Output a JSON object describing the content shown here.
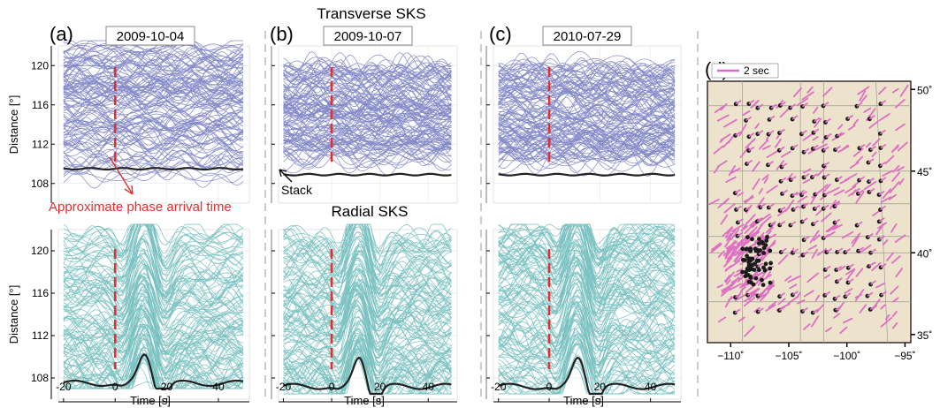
{
  "figure": {
    "section_titles": {
      "transverse": "Transverse SKS",
      "radial": "Radial SKS"
    },
    "annotations": {
      "phase": "Approximate phase arrival time",
      "stack": "Stack"
    }
  },
  "chart_data": [
    {
      "id": "a-transverse",
      "type": "line",
      "panel_letter": "(a)",
      "date": "2009-10-04",
      "component": "transverse",
      "xlabel": "",
      "ylabel": "Distance [°]",
      "xlim": [
        -22,
        52
      ],
      "ylim": [
        106,
        122
      ],
      "yticks": [
        108,
        112,
        116,
        120
      ],
      "ytick_labels": [
        "108",
        "112",
        "116",
        "120"
      ],
      "xticks": [],
      "xtick_labels": [],
      "arrival_time": 0,
      "stack_distance": 109.5,
      "stack_type": "flat",
      "trace_distance_range": [
        108.5,
        122
      ],
      "trace_time_range": [
        -20,
        50
      ],
      "trace_color": "#1e2a9c",
      "stack_color": "#222222",
      "marker_color": "#e03030"
    },
    {
      "id": "b-transverse",
      "type": "line",
      "panel_letter": "(b)",
      "date": "2009-10-07",
      "component": "transverse",
      "xlabel": "",
      "ylabel": "",
      "xlim": [
        -22,
        52
      ],
      "ylim": [
        106,
        122
      ],
      "yticks": [
        108,
        112,
        116,
        120
      ],
      "ytick_labels": [],
      "xticks": [],
      "xtick_labels": [],
      "arrival_time": 0,
      "stack_distance": 108.9,
      "stack_type": "flat",
      "trace_distance_range": [
        110,
        120
      ],
      "trace_time_range": [
        -20,
        50
      ],
      "trace_color": "#1e2a9c",
      "stack_color": "#222222",
      "marker_color": "#e03030"
    },
    {
      "id": "c-transverse",
      "type": "line",
      "panel_letter": "(c)",
      "date": "2010-07-29",
      "component": "transverse",
      "xlabel": "",
      "ylabel": "",
      "xlim": [
        -22,
        52
      ],
      "ylim": [
        106,
        122
      ],
      "yticks": [
        108,
        112,
        116,
        120
      ],
      "ytick_labels": [],
      "xticks": [],
      "xtick_labels": [],
      "arrival_time": 0,
      "stack_distance": 108.9,
      "stack_type": "flat",
      "trace_distance_range": [
        110,
        120
      ],
      "trace_time_range": [
        -20,
        50
      ],
      "trace_color": "#1e2a9c",
      "stack_color": "#222222",
      "marker_color": "#e03030"
    },
    {
      "id": "a-radial",
      "type": "line",
      "panel_letter": "",
      "date": "",
      "component": "radial",
      "xlabel": "Time [s]",
      "ylabel": "Distance [°]",
      "xlim": [
        -22,
        52
      ],
      "ylim": [
        106,
        122
      ],
      "yticks": [
        108,
        112,
        116,
        120
      ],
      "ytick_labels": [
        "108",
        "112",
        "116",
        "120"
      ],
      "xticks": [
        -20,
        0,
        20,
        40
      ],
      "xtick_labels": [
        "-20",
        "0",
        "20",
        "40"
      ],
      "arrival_time": 0,
      "stack_distance": 107.5,
      "stack_type": "pulse",
      "trace_distance_range": [
        106,
        122
      ],
      "trace_time_range": [
        -20,
        50
      ],
      "trace_color": "#0f8f8f",
      "stack_color": "#222222",
      "marker_color": "#e03030"
    },
    {
      "id": "b-radial",
      "type": "line",
      "panel_letter": "",
      "date": "",
      "component": "radial",
      "xlabel": "Time [s]",
      "ylabel": "",
      "xlim": [
        -22,
        52
      ],
      "ylim": [
        106,
        122
      ],
      "yticks": [
        108,
        112,
        116,
        120
      ],
      "ytick_labels": [],
      "xticks": [
        -20,
        0,
        20,
        40
      ],
      "xtick_labels": [
        "-20",
        "0",
        "20",
        "40"
      ],
      "arrival_time": 0,
      "stack_distance": 107.2,
      "stack_type": "pulse",
      "trace_distance_range": [
        106.5,
        122
      ],
      "trace_time_range": [
        -20,
        50
      ],
      "trace_color": "#0f8f8f",
      "stack_color": "#222222",
      "marker_color": "#e03030"
    },
    {
      "id": "c-radial",
      "type": "line",
      "panel_letter": "",
      "date": "",
      "component": "radial",
      "xlabel": "Time [s]",
      "ylabel": "",
      "xlim": [
        -22,
        52
      ],
      "ylim": [
        106,
        122
      ],
      "yticks": [
        108,
        112,
        116,
        120
      ],
      "ytick_labels": [],
      "xticks": [
        -20,
        0,
        20,
        40
      ],
      "xtick_labels": [
        "-20",
        "0",
        "20",
        "40"
      ],
      "arrival_time": 0,
      "stack_distance": 107.2,
      "stack_type": "pulse",
      "trace_distance_range": [
        106.5,
        122
      ],
      "trace_time_range": [
        -20,
        50
      ],
      "trace_color": "#0f8f8f",
      "stack_color": "#222222",
      "marker_color": "#e03030"
    },
    {
      "id": "d-map",
      "type": "scatter",
      "panel_letter": "(d)",
      "legend_label": "2 sec",
      "legend_position": "top-left",
      "xlim": [
        -112,
        -94.5
      ],
      "ylim": [
        34.5,
        50.5
      ],
      "xticks": [
        -110,
        -105,
        -100,
        -95
      ],
      "xtick_labels": [
        "−110˚",
        "−105˚",
        "−100˚",
        "−95˚"
      ],
      "yticks": [
        35,
        40,
        45,
        50
      ],
      "ytick_labels": [
        "35˚",
        "40˚",
        "45˚",
        "50˚"
      ],
      "land_color": "#ede2cb",
      "bar_color": "#dd6fc3",
      "station_color": "#1a1a1a",
      "station_region": {
        "lon": [
          -109.5,
          -97
        ],
        "lat": [
          36,
          49
        ]
      },
      "station_cluster": {
        "lon": [
          -109,
          -106.5
        ],
        "lat": [
          38,
          41
        ]
      },
      "bar_field": {
        "lon": [
          -111.5,
          -95
        ],
        "lat": [
          35,
          50
        ]
      }
    }
  ]
}
